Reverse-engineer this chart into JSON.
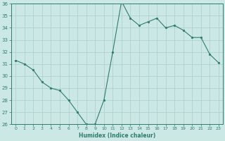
{
  "x": [
    0,
    1,
    2,
    3,
    4,
    5,
    6,
    7,
    8,
    9,
    10,
    11,
    12,
    13,
    14,
    15,
    16,
    17,
    18,
    19,
    20,
    21,
    22,
    23
  ],
  "y": [
    31.3,
    31.0,
    30.5,
    29.5,
    29.0,
    28.8,
    28.0,
    27.0,
    26.0,
    26.0,
    28.0,
    32.0,
    36.2,
    34.8,
    34.2,
    34.5,
    34.8,
    34.0,
    34.2,
    33.8,
    33.2,
    33.2,
    31.8,
    31.1
  ],
  "line_color": "#2e7d6e",
  "marker_color": "#2e7d6e",
  "bg_color": "#cce8e4",
  "grid_color": "#aacfcb",
  "tick_color": "#2e7d6e",
  "xlabel": "Humidex (Indice chaleur)",
  "ylim": [
    26,
    36
  ],
  "xlim": [
    -0.5,
    23.5
  ],
  "yticks": [
    26,
    27,
    28,
    29,
    30,
    31,
    32,
    33,
    34,
    35,
    36
  ],
  "xticks": [
    0,
    1,
    2,
    3,
    4,
    5,
    6,
    7,
    8,
    9,
    10,
    11,
    12,
    13,
    14,
    15,
    16,
    17,
    18,
    19,
    20,
    21,
    22,
    23
  ]
}
